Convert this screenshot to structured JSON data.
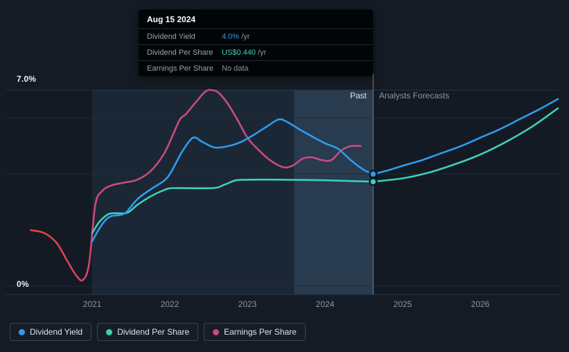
{
  "tooltip": {
    "date": "Aug 15 2024",
    "rows": [
      {
        "label": "Dividend Yield",
        "value": "4.0%",
        "suffix": " /yr",
        "color": "#2e9bf0"
      },
      {
        "label": "Dividend Per Share",
        "value": "US$0.440",
        "suffix": " /yr",
        "color": "#3ecfba"
      },
      {
        "label": "Earnings Per Share",
        "value": "No data",
        "suffix": "",
        "color": "#8b95a1"
      }
    ]
  },
  "legend": [
    {
      "id": "dividend-yield",
      "label": "Dividend Yield",
      "color": "#2e9bf0"
    },
    {
      "id": "dividend-per-share",
      "label": "Dividend Per Share",
      "color": "#3ecfba"
    },
    {
      "id": "earnings-per-share",
      "label": "Earnings Per Share",
      "color": "#c64b85"
    }
  ],
  "chart_data": {
    "type": "line",
    "x_ticks": [
      2021,
      2022,
      2023,
      2024,
      2025,
      2026
    ],
    "ylim": [
      0,
      7
    ],
    "y_axis_labels": {
      "max": "7.0%",
      "min": "0%"
    },
    "past_label": "Past",
    "forecast_label": "Analysts Forecasts",
    "past_start_x": 2021,
    "divider_x": 2024.62,
    "highlight_start_x": 2023.6,
    "gridlines": [
      7,
      6,
      4,
      0
    ],
    "series": [
      {
        "id": "earnings-per-share",
        "name": "Earnings Per Share",
        "color": "#c64b85",
        "color_start": "#ef413d",
        "gradient": true,
        "points": [
          [
            2020.21,
            2.0
          ],
          [
            2020.38,
            1.9
          ],
          [
            2020.54,
            1.55
          ],
          [
            2020.67,
            0.95
          ],
          [
            2020.79,
            0.4
          ],
          [
            2020.88,
            0.22
          ],
          [
            2020.96,
            0.8
          ],
          [
            2021.04,
            2.9
          ],
          [
            2021.13,
            3.4
          ],
          [
            2021.25,
            3.6
          ],
          [
            2021.42,
            3.7
          ],
          [
            2021.58,
            3.8
          ],
          [
            2021.75,
            4.1
          ],
          [
            2021.92,
            4.7
          ],
          [
            2022.04,
            5.4
          ],
          [
            2022.13,
            5.95
          ],
          [
            2022.21,
            6.15
          ],
          [
            2022.33,
            6.55
          ],
          [
            2022.46,
            6.95
          ],
          [
            2022.54,
            7.0
          ],
          [
            2022.63,
            6.9
          ],
          [
            2022.75,
            6.5
          ],
          [
            2022.88,
            5.9
          ],
          [
            2023.0,
            5.3
          ],
          [
            2023.13,
            4.9
          ],
          [
            2023.29,
            4.5
          ],
          [
            2023.46,
            4.25
          ],
          [
            2023.58,
            4.3
          ],
          [
            2023.71,
            4.55
          ],
          [
            2023.83,
            4.6
          ],
          [
            2023.96,
            4.5
          ],
          [
            2024.08,
            4.5
          ],
          [
            2024.21,
            4.85
          ],
          [
            2024.33,
            5.0
          ],
          [
            2024.46,
            5.0
          ]
        ]
      },
      {
        "id": "dividend-per-share",
        "name": "Dividend Per Share",
        "color": "#3ecfba",
        "points": [
          [
            2021.0,
            1.9
          ],
          [
            2021.08,
            2.25
          ],
          [
            2021.17,
            2.5
          ],
          [
            2021.25,
            2.6
          ],
          [
            2021.45,
            2.62
          ],
          [
            2021.58,
            2.9
          ],
          [
            2021.75,
            3.2
          ],
          [
            2021.92,
            3.42
          ],
          [
            2022.05,
            3.5
          ],
          [
            2022.55,
            3.5
          ],
          [
            2022.7,
            3.62
          ],
          [
            2022.85,
            3.78
          ],
          [
            2023.0,
            3.8
          ],
          [
            2023.5,
            3.8
          ],
          [
            2024.0,
            3.78
          ],
          [
            2024.62,
            3.73
          ]
        ],
        "forecast": [
          [
            2024.62,
            3.73
          ],
          [
            2025.0,
            3.85
          ],
          [
            2025.33,
            4.05
          ],
          [
            2025.67,
            4.35
          ],
          [
            2026.0,
            4.7
          ],
          [
            2026.33,
            5.15
          ],
          [
            2026.67,
            5.7
          ],
          [
            2027.0,
            6.35
          ]
        ],
        "marker": [
          2024.62,
          3.73
        ]
      },
      {
        "id": "dividend-yield",
        "name": "Dividend Yield",
        "color": "#2e9bf0",
        "points": [
          [
            2021.0,
            1.6
          ],
          [
            2021.08,
            2.0
          ],
          [
            2021.17,
            2.35
          ],
          [
            2021.25,
            2.5
          ],
          [
            2021.42,
            2.6
          ],
          [
            2021.58,
            3.1
          ],
          [
            2021.75,
            3.45
          ],
          [
            2021.92,
            3.75
          ],
          [
            2022.0,
            4.0
          ],
          [
            2022.08,
            4.4
          ],
          [
            2022.17,
            4.85
          ],
          [
            2022.3,
            5.3
          ],
          [
            2022.42,
            5.15
          ],
          [
            2022.58,
            4.95
          ],
          [
            2022.75,
            5.0
          ],
          [
            2022.92,
            5.15
          ],
          [
            2023.08,
            5.4
          ],
          [
            2023.25,
            5.7
          ],
          [
            2023.4,
            5.95
          ],
          [
            2023.5,
            5.88
          ],
          [
            2023.67,
            5.6
          ],
          [
            2023.83,
            5.35
          ],
          [
            2024.0,
            5.1
          ],
          [
            2024.17,
            4.9
          ],
          [
            2024.33,
            4.5
          ],
          [
            2024.5,
            4.15
          ],
          [
            2024.62,
            4.0
          ]
        ],
        "forecast": [
          [
            2024.62,
            4.0
          ],
          [
            2024.83,
            4.15
          ],
          [
            2025.0,
            4.3
          ],
          [
            2025.25,
            4.5
          ],
          [
            2025.5,
            4.75
          ],
          [
            2025.75,
            5.0
          ],
          [
            2026.0,
            5.3
          ],
          [
            2026.25,
            5.6
          ],
          [
            2026.5,
            5.95
          ],
          [
            2026.75,
            6.3
          ],
          [
            2027.0,
            6.68
          ]
        ],
        "marker": [
          2024.62,
          4.0
        ]
      }
    ]
  }
}
